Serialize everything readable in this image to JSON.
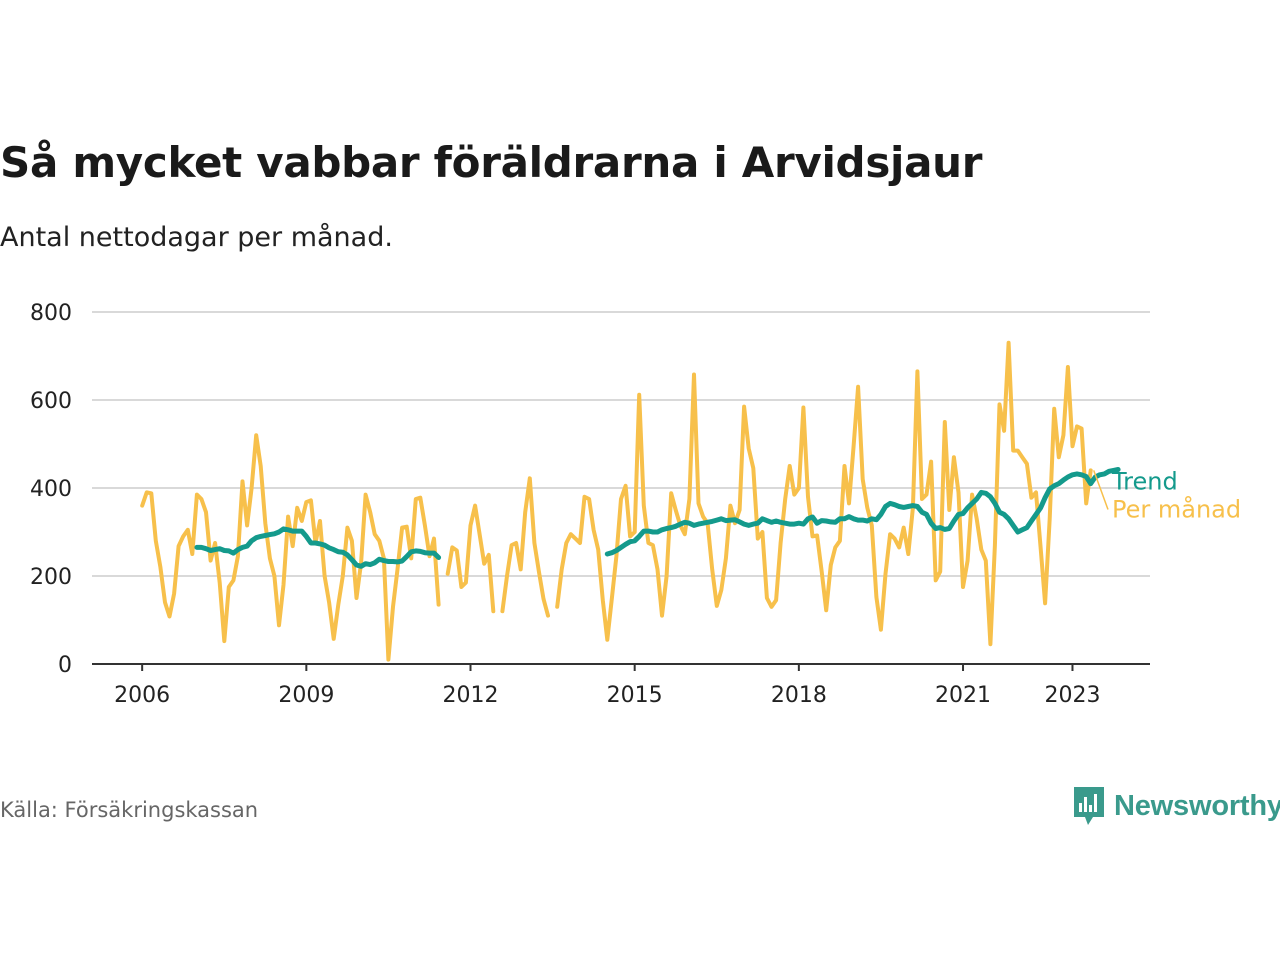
{
  "title": "Så mycket vabbar föräldrarna i Arvidsjaur",
  "subtitle": "Antal nettodagar per månad.",
  "source": "Källa: Försäkringskassan",
  "logo": {
    "text": "Newsworthy",
    "icon": "newsworthy-bar-chart-icon",
    "color": "#3a9a8c"
  },
  "chart_data": {
    "type": "line",
    "title": "Så mycket vabbar föräldrarna i Arvidsjaur",
    "subtitle": "Antal nettodagar per månad.",
    "xlabel": "",
    "ylabel": "",
    "x_start": "2006-01",
    "x_end": "2023-04",
    "xlim": [
      "2005-02",
      "2024-06"
    ],
    "ylim": [
      0,
      800
    ],
    "yticks": [
      0,
      200,
      400,
      600,
      800
    ],
    "xticks": [
      {
        "date": "2006-01",
        "label": "2006"
      },
      {
        "date": "2009-01",
        "label": "2009"
      },
      {
        "date": "2012-01",
        "label": "2012"
      },
      {
        "date": "2015-01",
        "label": "2015"
      },
      {
        "date": "2018-01",
        "label": "2018"
      },
      {
        "date": "2021-01",
        "label": "2021"
      },
      {
        "date": "2023-01",
        "label": "2023"
      }
    ],
    "grid": true,
    "legend": "direct labels at right end of lines",
    "series": [
      {
        "name": "Per månad",
        "color": "#f7c04b",
        "values": [
          360,
          390,
          388,
          280,
          220,
          140,
          108,
          160,
          268,
          290,
          305,
          250,
          385,
          375,
          345,
          235,
          275,
          185,
          52,
          175,
          190,
          245,
          415,
          315,
          400,
          520,
          450,
          320,
          240,
          200,
          88,
          180,
          335,
          268,
          355,
          325,
          368,
          372,
          275,
          325,
          200,
          140,
          57,
          135,
          200,
          310,
          280,
          150,
          230,
          385,
          345,
          295,
          280,
          240,
          10,
          130,
          215,
          310,
          312,
          240,
          375,
          378,
          315,
          245,
          285,
          135,
          null,
          205,
          265,
          258,
          175,
          185,
          315,
          360,
          295,
          228,
          248,
          120,
          null,
          120,
          200,
          270,
          275,
          215,
          345,
          422,
          275,
          210,
          148,
          110,
          null,
          130,
          215,
          275,
          295,
          285,
          275,
          380,
          375,
          305,
          260,
          145,
          55,
          150,
          245,
          375,
          405,
          290,
          300,
          612,
          360,
          275,
          270,
          215,
          110,
          200,
          388,
          350,
          315,
          295,
          375,
          658,
          365,
          335,
          320,
          215,
          132,
          168,
          240,
          360,
          320,
          350,
          585,
          490,
          445,
          285,
          300,
          150,
          130,
          145,
          275,
          375,
          450,
          385,
          400,
          583,
          380,
          290,
          292,
          210,
          122,
          225,
          265,
          280,
          450,
          365,
          495,
          630,
          420,
          355,
          315,
          152,
          78,
          205,
          295,
          285,
          265,
          310,
          250,
          355,
          665,
          375,
          385,
          460,
          190,
          210,
          550,
          350,
          470,
          390,
          175,
          235,
          385,
          330,
          260,
          235,
          45,
          270,
          590,
          530,
          730,
          485,
          485,
          470,
          455,
          378,
          390,
          265,
          138,
          330,
          580,
          470,
          520,
          675,
          495,
          540,
          535,
          365,
          440
        ]
      },
      {
        "name": "Trend",
        "color": "#149a8c",
        "values": [
          null,
          null,
          null,
          null,
          null,
          null,
          null,
          null,
          null,
          null,
          null,
          null,
          265,
          265,
          262,
          258,
          260,
          262,
          258,
          257,
          252,
          260,
          265,
          268,
          280,
          287,
          290,
          292,
          294,
          296,
          300,
          307,
          305,
          302,
          302,
          302,
          290,
          275,
          275,
          273,
          270,
          264,
          260,
          255,
          254,
          248,
          237,
          225,
          222,
          228,
          226,
          230,
          238,
          235,
          233,
          233,
          232,
          234,
          244,
          255,
          257,
          256,
          253,
          252,
          252,
          242,
          null,
          null,
          null,
          null,
          null,
          null,
          null,
          null,
          null,
          null,
          null,
          null,
          null,
          null,
          null,
          null,
          null,
          null,
          null,
          null,
          null,
          null,
          null,
          null,
          null,
          null,
          null,
          null,
          null,
          null,
          null,
          null,
          null,
          null,
          null,
          null,
          250,
          253,
          258,
          265,
          272,
          278,
          280,
          290,
          302,
          302,
          300,
          300,
          305,
          308,
          310,
          313,
          318,
          322,
          320,
          315,
          318,
          320,
          322,
          324,
          327,
          330,
          326,
          327,
          328,
          323,
          318,
          315,
          318,
          320,
          330,
          326,
          322,
          325,
          322,
          320,
          318,
          318,
          320,
          318,
          330,
          334,
          320,
          326,
          325,
          323,
          322,
          330,
          330,
          335,
          330,
          327,
          327,
          325,
          330,
          328,
          340,
          358,
          365,
          362,
          358,
          356,
          358,
          360,
          358,
          345,
          340,
          320,
          308,
          310,
          306,
          308,
          325,
          340,
          342,
          355,
          365,
          375,
          390,
          388,
          380,
          365,
          345,
          340,
          330,
          315,
          300,
          305,
          310,
          325,
          340,
          355,
          378,
          398,
          405,
          410,
          418,
          425,
          430,
          432,
          430,
          426,
          410,
          425,
          430,
          432,
          438,
          440,
          442
        ]
      }
    ]
  }
}
